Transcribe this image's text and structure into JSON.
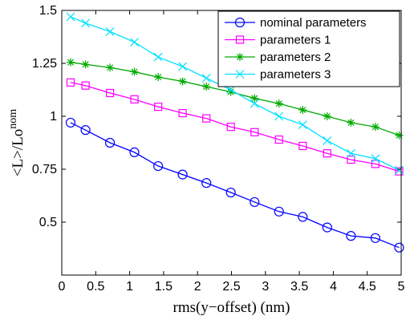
{
  "chart_data": {
    "type": "line",
    "xlabel": "rms(y−offset) (nm)",
    "ylabel_main": "<L>/Lo",
    "ylabel_sup": "nom",
    "xlim": [
      0,
      5
    ],
    "ylim": [
      0.25,
      1.5
    ],
    "xticks": [
      0,
      0.5,
      1,
      1.5,
      2,
      2.5,
      3,
      3.5,
      4,
      4.5,
      5
    ],
    "xtick_labels": [
      "0",
      "0.5",
      "1",
      "1.5",
      "2",
      "2.5",
      "3",
      "3.5",
      "4",
      "4.5",
      "5"
    ],
    "yticks": [
      0.5,
      0.75,
      1,
      1.25,
      1.5
    ],
    "ytick_labels": [
      "0.5",
      "0.75",
      "1",
      "1.25",
      "1.5"
    ],
    "grid": false,
    "legend_position": "top-right",
    "x": [
      0.13,
      0.35,
      0.71,
      1.07,
      1.42,
      1.78,
      2.13,
      2.49,
      2.84,
      3.2,
      3.55,
      3.91,
      4.26,
      4.62,
      4.97
    ],
    "series": [
      {
        "name": "nominal parameters",
        "color": "#0000ff",
        "marker": "circle",
        "values": [
          0.97,
          0.935,
          0.875,
          0.83,
          0.765,
          0.725,
          0.685,
          0.64,
          0.595,
          0.55,
          0.525,
          0.475,
          0.435,
          0.425,
          0.38
        ]
      },
      {
        "name": "parameters 1",
        "color": "#ff00ff",
        "marker": "square",
        "values": [
          1.16,
          1.145,
          1.11,
          1.08,
          1.045,
          1.015,
          0.99,
          0.95,
          0.925,
          0.89,
          0.86,
          0.825,
          0.795,
          0.775,
          0.74
        ]
      },
      {
        "name": "parameters 2",
        "color": "#00aa00",
        "marker": "star",
        "values": [
          1.255,
          1.245,
          1.23,
          1.21,
          1.185,
          1.165,
          1.14,
          1.115,
          1.085,
          1.06,
          1.03,
          1.0,
          0.97,
          0.95,
          0.91
        ]
      },
      {
        "name": "parameters 3",
        "color": "#00e0ff",
        "marker": "x",
        "values": [
          1.47,
          1.44,
          1.4,
          1.35,
          1.28,
          1.235,
          1.18,
          1.125,
          1.06,
          1.0,
          0.96,
          0.885,
          0.825,
          0.8,
          0.745
        ]
      }
    ]
  }
}
